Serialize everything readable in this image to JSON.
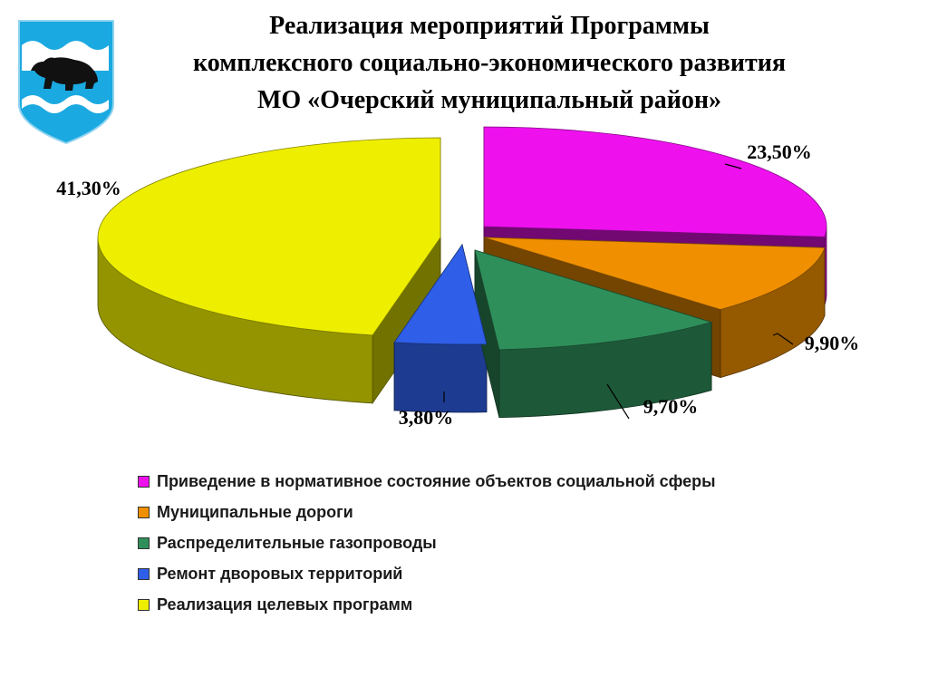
{
  "title_lines": [
    "Реализация мероприятий Программы",
    "комплексного социально-экономического развития",
    "МО «Очерский муниципальный район»"
  ],
  "emblem": {
    "icon": "bear-coat-of-arms-icon",
    "bg": "#1aa9e0"
  },
  "chart_data": {
    "type": "pie",
    "title": "",
    "slices": [
      {
        "label": "Приведение в нормативное состояние объектов социальной сферы",
        "value": 23.5,
        "display": "23,50%",
        "color": "#ee11ee"
      },
      {
        "label": "Муниципальные дороги",
        "value": 9.9,
        "display": "9,90%",
        "color": "#f09000"
      },
      {
        "label": "Распределительные газопроводы",
        "value": 9.7,
        "display": "9,70%",
        "color": "#2f8f5a"
      },
      {
        "label": "Ремонт дворовых территорий",
        "value": 3.8,
        "display": "3,80%",
        "color": "#2f5fe8"
      },
      {
        "label": "Реализация целевых программ",
        "value": 41.3,
        "display": "41,30%",
        "color": "#eeee00"
      }
    ],
    "legend_position": "bottom"
  }
}
